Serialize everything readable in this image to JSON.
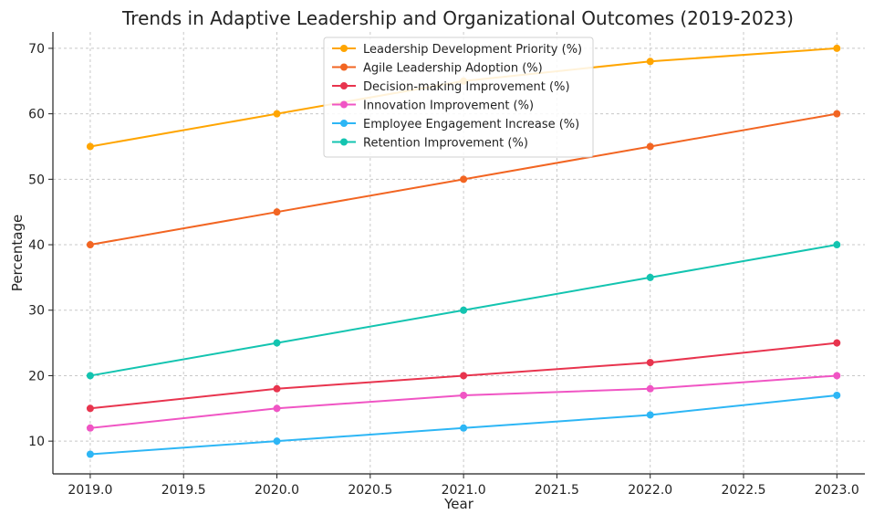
{
  "chart_data": {
    "type": "line",
    "title": "Trends in Adaptive Leadership and Organizational Outcomes (2019-2023)",
    "xlabel": "Year",
    "ylabel": "Percentage",
    "x": [
      2019,
      2020,
      2021,
      2022,
      2023
    ],
    "xticks": [
      "2019.0",
      "2019.5",
      "2020.0",
      "2020.5",
      "2021.0",
      "2021.5",
      "2022.0",
      "2022.5",
      "2023.0"
    ],
    "xlim": [
      2018.8,
      2023.15
    ],
    "yticks": [
      "10",
      "20",
      "30",
      "40",
      "50",
      "60",
      "70"
    ],
    "ylim": [
      5,
      72.5
    ],
    "grid": true,
    "legend_position": "top-center",
    "series": [
      {
        "name": "Leadership Development Priority (%)",
        "color": "#FFA500",
        "values": [
          55,
          60,
          65,
          68,
          70
        ]
      },
      {
        "name": "Agile Leadership Adoption (%)",
        "color": "#F26522",
        "values": [
          40,
          45,
          50,
          55,
          60
        ]
      },
      {
        "name": "Decision-making Improvement (%)",
        "color": "#E8344E",
        "values": [
          15,
          18,
          20,
          22,
          25
        ]
      },
      {
        "name": "Innovation Improvement (%)",
        "color": "#F055C4",
        "values": [
          12,
          15,
          17,
          18,
          20
        ]
      },
      {
        "name": "Employee Engagement Increase (%)",
        "color": "#2DB6F5",
        "values": [
          8,
          10,
          12,
          14,
          17
        ]
      },
      {
        "name": "Retention Improvement (%)",
        "color": "#13C4B0",
        "values": [
          20,
          25,
          30,
          35,
          40
        ]
      }
    ]
  }
}
